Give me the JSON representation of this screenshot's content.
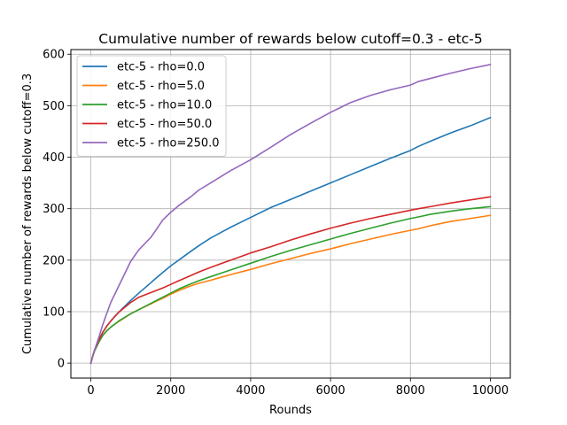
{
  "chart_data": {
    "type": "line",
    "title": "Cumulative number of rewards below cutoff=0.3 - etc-5",
    "xlabel": "Rounds",
    "ylabel": "Cumulative number of rewards below cutoff=0.3",
    "xlim": [
      -500,
      10500
    ],
    "ylim": [
      -29,
      609
    ],
    "xticks": [
      0,
      2000,
      4000,
      6000,
      8000,
      10000
    ],
    "yticks": [
      0,
      100,
      200,
      300,
      400,
      500,
      600
    ],
    "grid": true,
    "legend_position": "top-left",
    "x": [
      0,
      50,
      100,
      200,
      300,
      400,
      500,
      700,
      1000,
      1200,
      1500,
      1600,
      1800,
      2000,
      2200,
      2500,
      2700,
      3000,
      3500,
      4000,
      4500,
      5000,
      5500,
      6000,
      6500,
      7000,
      7500,
      8000,
      8200,
      8500,
      9000,
      9500,
      10000
    ],
    "series": [
      {
        "name": "etc-5 - rho=0.0",
        "color": "#1f77b4",
        "values": [
          0,
          15,
          27,
          45,
          60,
          72,
          82,
          99,
          122,
          136,
          156,
          163,
          176,
          189,
          200,
          217,
          228,
          243,
          264,
          283,
          302,
          318,
          334,
          350,
          366,
          382,
          398,
          413,
          421,
          431,
          447,
          461,
          477
        ]
      },
      {
        "name": "etc-5 - rho=5.0",
        "color": "#ff7f0e",
        "values": [
          0,
          14,
          25,
          41,
          54,
          63,
          70,
          81,
          96,
          104,
          115,
          119,
          126,
          134,
          141,
          150,
          155,
          161,
          172,
          182,
          193,
          203,
          213,
          222,
          232,
          241,
          250,
          258,
          261,
          267,
          275,
          281,
          287
        ]
      },
      {
        "name": "etc-5 - rho=10.0",
        "color": "#2ca02c",
        "values": [
          0,
          14,
          25,
          41,
          54,
          63,
          70,
          82,
          96,
          104,
          116,
          120,
          128,
          136,
          144,
          154,
          160,
          168,
          181,
          194,
          207,
          219,
          230,
          241,
          252,
          262,
          272,
          281,
          284,
          289,
          295,
          300,
          304
        ]
      },
      {
        "name": "etc-5 - rho=50.0",
        "color": "#d62728",
        "values": [
          0,
          15,
          27,
          45,
          60,
          72,
          82,
          99,
          118,
          128,
          137,
          140,
          146,
          153,
          160,
          170,
          177,
          186,
          200,
          214,
          226,
          239,
          251,
          262,
          272,
          281,
          289,
          297,
          300,
          304,
          311,
          317,
          323
        ]
      },
      {
        "name": "etc-5 - rho=250.0",
        "color": "#9467bd",
        "values": [
          0,
          15,
          27,
          50,
          75,
          97,
          118,
          150,
          198,
          220,
          244,
          255,
          278,
          293,
          306,
          323,
          336,
          350,
          374,
          395,
          419,
          444,
          466,
          487,
          506,
          520,
          531,
          540,
          547,
          553,
          563,
          572,
          580
        ]
      }
    ]
  }
}
